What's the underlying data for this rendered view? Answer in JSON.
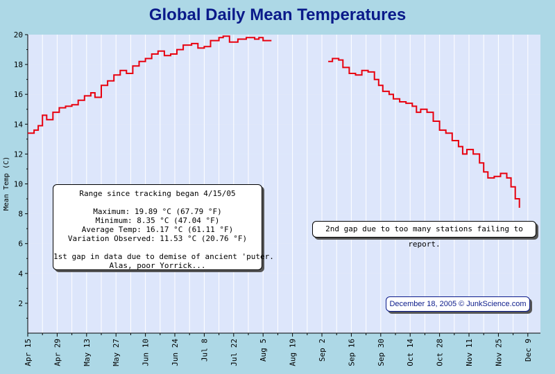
{
  "title": "Global Daily Mean Temperatures",
  "stats": {
    "heading": "Range since tracking began 4/15/05",
    "lines": [
      "Maximum: 19.89 °C (67.79 °F)",
      "Minimum: 8.35 °C (47.04 °F)",
      "Average Temp: 16.17 °C (61.11 °F)",
      "Variation Observed: 11.53 °C (20.76 °F)"
    ],
    "gap_note_1": "1st gap in data due to demise of ancient 'puter.",
    "gap_note_2": "Alas, poor Yorrick..."
  },
  "gap2_note": "2nd gap due to too many stations failing to report.",
  "credit": "December 18, 2005 © JunkScience.com",
  "colors": {
    "line": "#e8000e",
    "title": "#0a1a8a",
    "band": "#dde6fb",
    "band_alt": "#f4f4f4",
    "background": "#add8e6"
  },
  "chart_data": {
    "type": "line",
    "title": "Global Daily Mean Temperatures",
    "xlabel": "",
    "ylabel": "Mean Temp (C)",
    "ylim": [
      0,
      20
    ],
    "yticks": [
      2,
      4,
      6,
      8,
      10,
      12,
      14,
      16,
      18,
      20
    ],
    "xlim": [
      "2005-04-15",
      "2005-12-15"
    ],
    "xtick_labels": [
      "Apr 15",
      "Apr 29",
      "May 13",
      "May 27",
      "Jun 10",
      "Jun 24",
      "Jul 8",
      "Jul 22",
      "Aug 5",
      "Aug 19",
      "Sep 2",
      "Sep 16",
      "Sep 30",
      "Oct 14",
      "Oct 28",
      "Nov 11",
      "Nov 25",
      "Dec 9"
    ],
    "grid": true,
    "series": [
      {
        "values": [
          [
            "2005-04-15",
            13.4
          ],
          [
            "2005-04-18",
            13.6
          ],
          [
            "2005-04-20",
            13.9
          ],
          [
            "2005-04-22",
            14.6
          ],
          [
            "2005-04-24",
            14.3
          ],
          [
            "2005-04-27",
            14.8
          ],
          [
            "2005-04-30",
            15.1
          ],
          [
            "2005-05-03",
            15.2
          ],
          [
            "2005-05-06",
            15.3
          ],
          [
            "2005-05-09",
            15.6
          ],
          [
            "2005-05-12",
            15.9
          ],
          [
            "2005-05-15",
            16.1
          ],
          [
            "2005-05-17",
            15.8
          ],
          [
            "2005-05-20",
            16.6
          ],
          [
            "2005-05-23",
            16.9
          ],
          [
            "2005-05-26",
            17.3
          ],
          [
            "2005-05-29",
            17.6
          ],
          [
            "2005-06-01",
            17.4
          ],
          [
            "2005-06-04",
            17.9
          ],
          [
            "2005-06-07",
            18.2
          ],
          [
            "2005-06-10",
            18.4
          ],
          [
            "2005-06-13",
            18.7
          ],
          [
            "2005-06-16",
            18.9
          ],
          [
            "2005-06-19",
            18.6
          ],
          [
            "2005-06-22",
            18.7
          ],
          [
            "2005-06-25",
            19.0
          ],
          [
            "2005-06-28",
            19.3
          ],
          [
            "2005-07-02",
            19.4
          ],
          [
            "2005-07-05",
            19.1
          ],
          [
            "2005-07-08",
            19.2
          ],
          [
            "2005-07-11",
            19.6
          ],
          [
            "2005-07-15",
            19.8
          ],
          [
            "2005-07-17",
            19.9
          ],
          [
            "2005-07-20",
            19.5
          ],
          [
            "2005-07-24",
            19.7
          ],
          [
            "2005-07-28",
            19.8
          ],
          [
            "2005-08-01",
            19.7
          ],
          [
            "2005-08-03",
            19.8
          ],
          [
            "2005-08-05",
            19.6
          ],
          [
            "2005-08-09",
            19.6
          ]
        ]
      },
      {
        "values": [
          [
            "2005-09-05",
            18.2
          ],
          [
            "2005-09-07",
            18.4
          ],
          [
            "2005-09-10",
            18.3
          ],
          [
            "2005-09-12",
            17.8
          ],
          [
            "2005-09-15",
            17.4
          ],
          [
            "2005-09-18",
            17.3
          ],
          [
            "2005-09-21",
            17.6
          ],
          [
            "2005-09-24",
            17.5
          ],
          [
            "2005-09-27",
            17.0
          ],
          [
            "2005-09-29",
            16.6
          ],
          [
            "2005-10-01",
            16.2
          ],
          [
            "2005-10-04",
            16.0
          ],
          [
            "2005-10-06",
            15.7
          ],
          [
            "2005-10-09",
            15.5
          ],
          [
            "2005-10-12",
            15.4
          ],
          [
            "2005-10-15",
            15.2
          ],
          [
            "2005-10-17",
            14.8
          ],
          [
            "2005-10-19",
            15.0
          ],
          [
            "2005-10-22",
            14.8
          ],
          [
            "2005-10-25",
            14.2
          ],
          [
            "2005-10-28",
            13.6
          ],
          [
            "2005-10-31",
            13.4
          ],
          [
            "2005-11-03",
            12.9
          ],
          [
            "2005-11-06",
            12.5
          ],
          [
            "2005-11-08",
            12.0
          ],
          [
            "2005-11-10",
            12.3
          ],
          [
            "2005-11-13",
            12.0
          ],
          [
            "2005-11-16",
            11.4
          ],
          [
            "2005-11-18",
            10.8
          ],
          [
            "2005-11-20",
            10.4
          ],
          [
            "2005-11-23",
            10.5
          ],
          [
            "2005-11-26",
            10.7
          ],
          [
            "2005-11-29",
            10.4
          ],
          [
            "2005-12-01",
            9.8
          ],
          [
            "2005-12-03",
            9.0
          ],
          [
            "2005-12-05",
            8.4
          ]
        ]
      }
    ]
  }
}
